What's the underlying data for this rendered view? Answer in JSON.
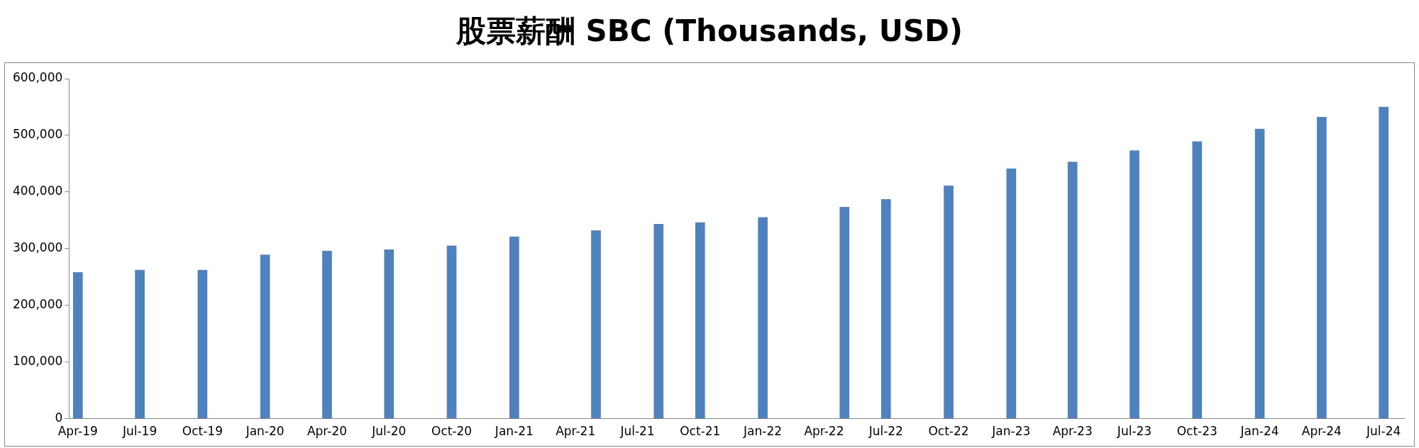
{
  "chart_data": {
    "type": "bar",
    "title": "股票薪酬 SBC (Thousands, USD)",
    "x": [
      "2019-04",
      "2019-07",
      "2019-10",
      "2020-01",
      "2020-04",
      "2020-07",
      "2020-10",
      "2021-01",
      "2021-05",
      "2021-08",
      "2021-10",
      "2022-01",
      "2022-05",
      "2022-07",
      "2022-10",
      "2023-01",
      "2023-04",
      "2023-07",
      "2023-10",
      "2024-01",
      "2024-04",
      "2024-07"
    ],
    "values": [
      258000,
      262000,
      262000,
      289000,
      296000,
      298000,
      305000,
      321000,
      332000,
      343000,
      346000,
      355000,
      373000,
      387000,
      411000,
      441000,
      453000,
      473000,
      489000,
      511000,
      532000,
      550000
    ],
    "color": "#4f81bd",
    "xlim": [
      "2019-03-19",
      "2024-07-31"
    ],
    "xticks": [
      {
        "value": "2019-04",
        "label": "Apr-19"
      },
      {
        "value": "2019-07",
        "label": "Jul-19"
      },
      {
        "value": "2019-10",
        "label": "Oct-19"
      },
      {
        "value": "2020-01",
        "label": "Jan-20"
      },
      {
        "value": "2020-04",
        "label": "Apr-20"
      },
      {
        "value": "2020-07",
        "label": "Jul-20"
      },
      {
        "value": "2020-10",
        "label": "Oct-20"
      },
      {
        "value": "2021-01",
        "label": "Jan-21"
      },
      {
        "value": "2021-04",
        "label": "Apr-21"
      },
      {
        "value": "2021-07",
        "label": "Jul-21"
      },
      {
        "value": "2021-10",
        "label": "Oct-21"
      },
      {
        "value": "2022-01",
        "label": "Jan-22"
      },
      {
        "value": "2022-04",
        "label": "Apr-22"
      },
      {
        "value": "2022-07",
        "label": "Jul-22"
      },
      {
        "value": "2022-10",
        "label": "Oct-22"
      },
      {
        "value": "2023-01",
        "label": "Jan-23"
      },
      {
        "value": "2023-04",
        "label": "Apr-23"
      },
      {
        "value": "2023-07",
        "label": "Jul-23"
      },
      {
        "value": "2023-10",
        "label": "Oct-23"
      },
      {
        "value": "2024-01",
        "label": "Jan-24"
      },
      {
        "value": "2024-04",
        "label": "Apr-24"
      },
      {
        "value": "2024-07",
        "label": "Jul-24"
      }
    ],
    "ylim": [
      0,
      600000
    ],
    "yticks": [
      0,
      {
        "value": 100000,
        "label": "100,000"
      },
      {
        "value": 200000,
        "label": "200,000"
      },
      {
        "value": 300000,
        "label": "300,000"
      },
      {
        "value": 400000,
        "label": "400,000"
      },
      {
        "value": 500000,
        "label": "500,000"
      },
      {
        "value": 600000,
        "label": "600,000"
      }
    ],
    "grid": false,
    "legend": false
  }
}
